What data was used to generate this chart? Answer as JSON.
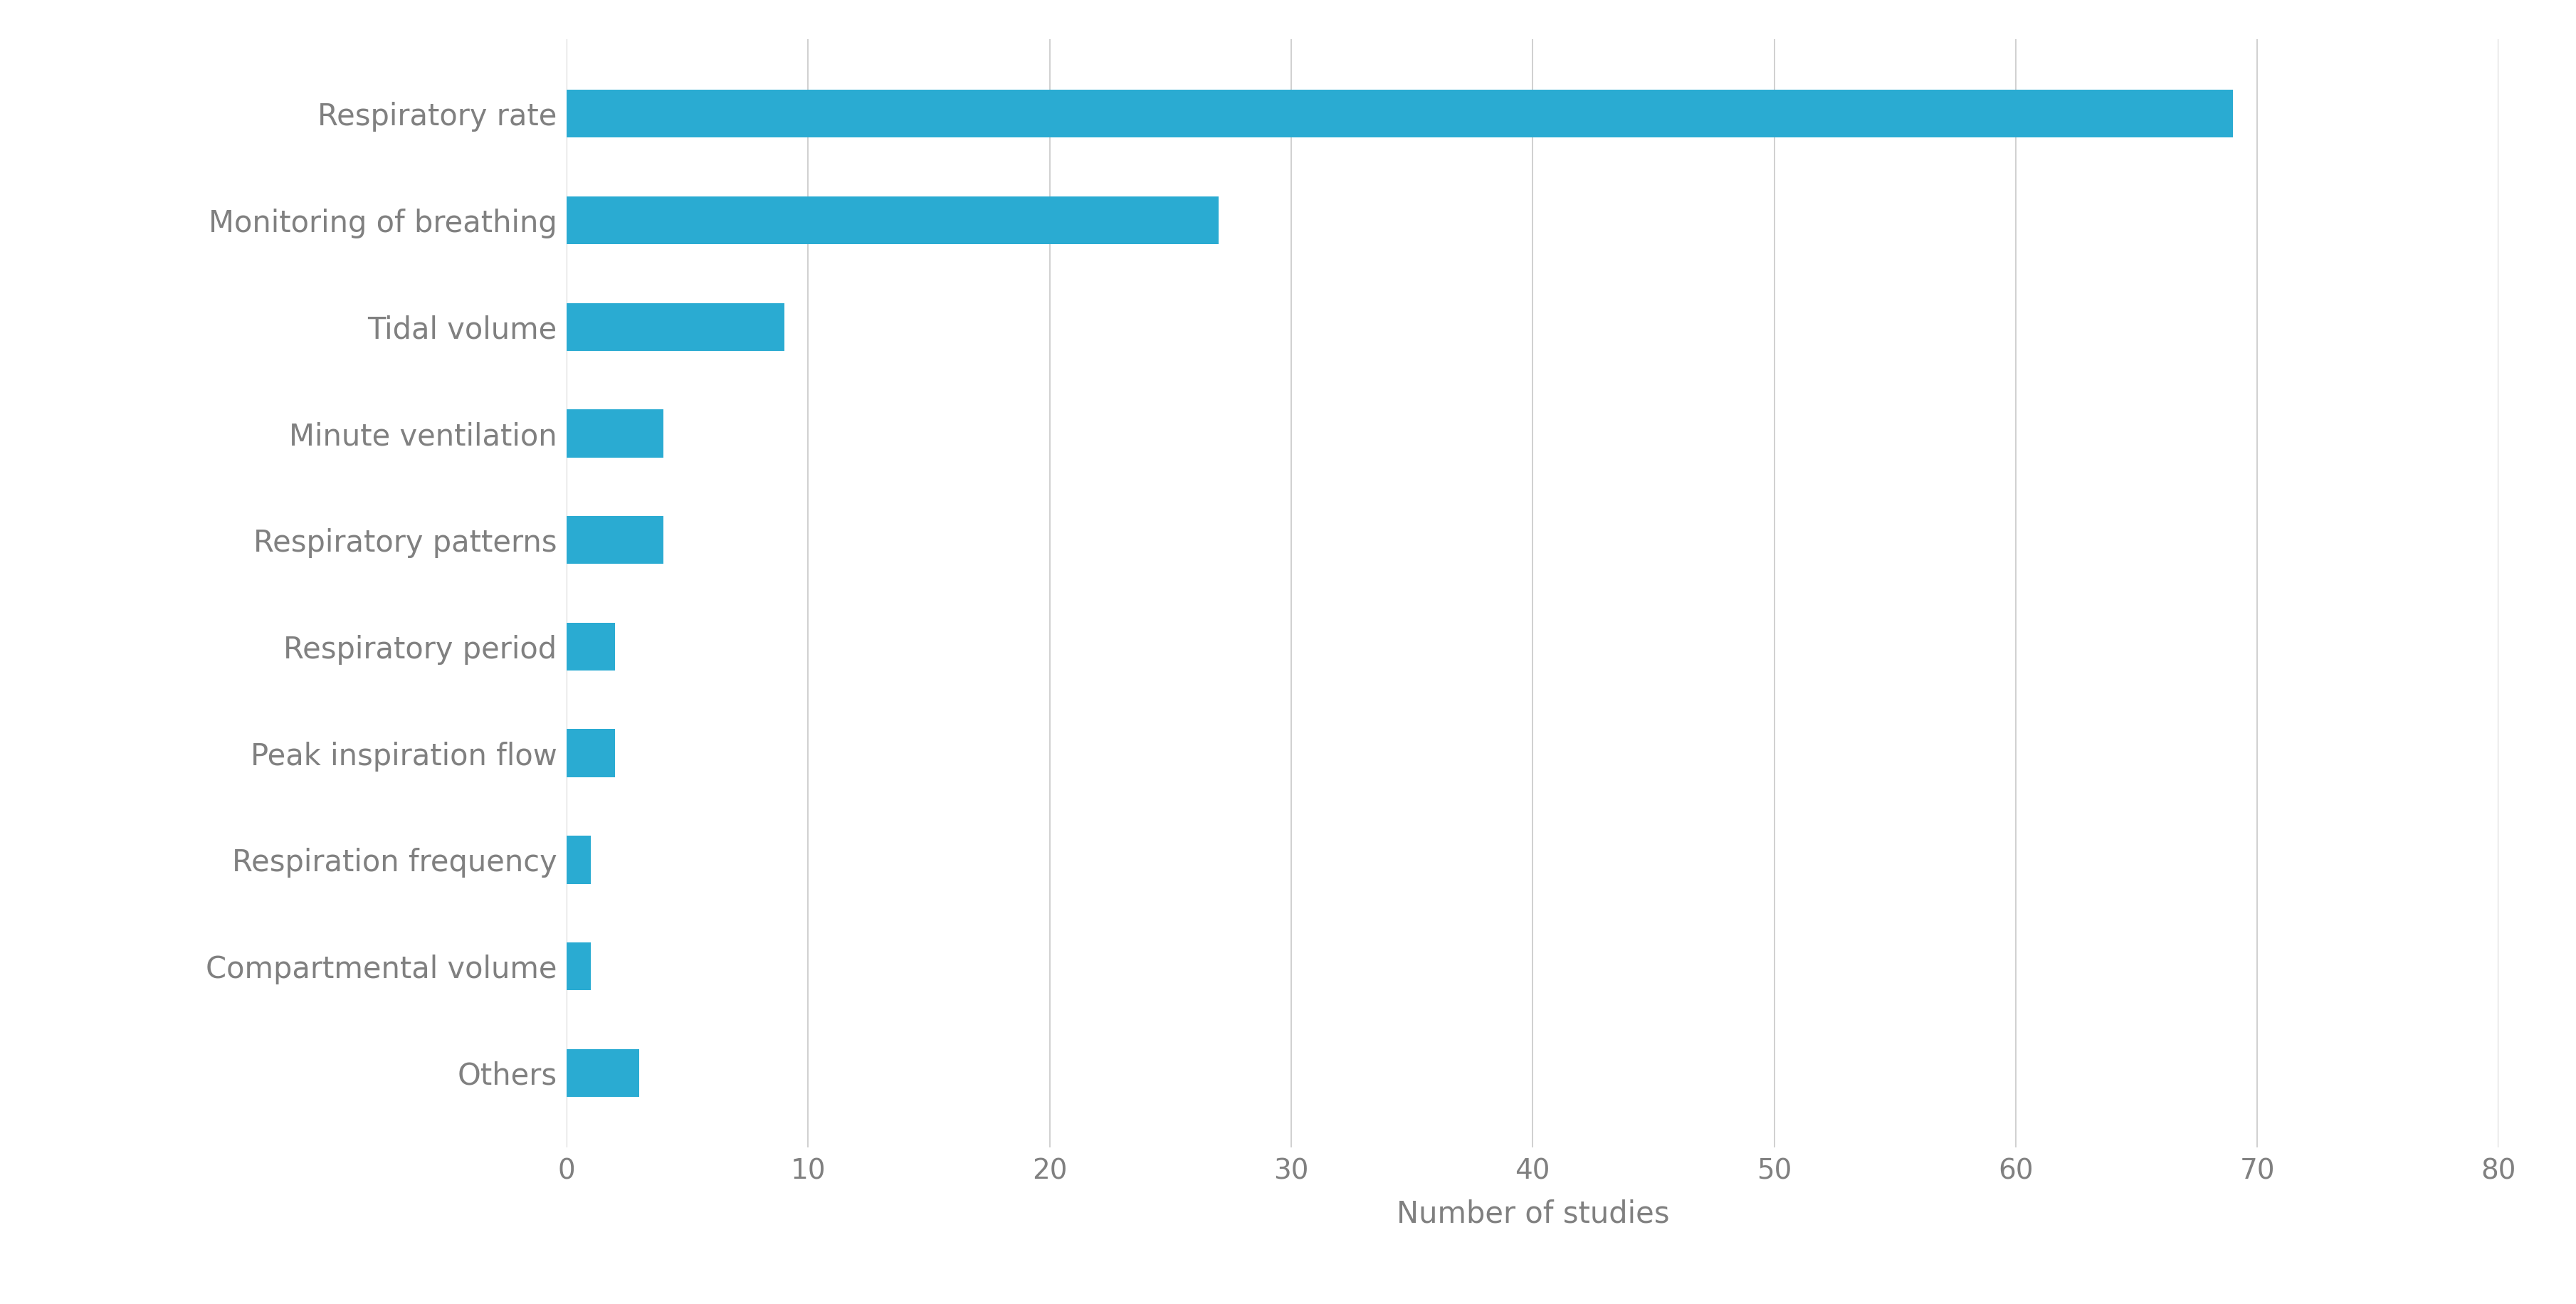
{
  "categories": [
    "Respiratory rate",
    "Monitoring of breathing",
    "Tidal volume",
    "Minute ventilation",
    "Respiratory patterns",
    "Respiratory period",
    "Peak inspiration flow",
    "Respiration frequency",
    "Compartmental volume",
    "Others"
  ],
  "values": [
    69,
    27,
    9,
    4,
    4,
    2,
    2,
    1,
    1,
    3
  ],
  "bar_color": "#2aabd2",
  "xlabel": "Number of studies",
  "xlim": [
    0,
    80
  ],
  "xticks": [
    0,
    10,
    20,
    30,
    40,
    50,
    60,
    70,
    80
  ],
  "background_color": "#ffffff",
  "grid_color": "#c8c8c8",
  "label_color": "#808080",
  "xlabel_fontsize": 30,
  "tick_fontsize": 28,
  "label_text_fontsize": 30,
  "bar_height": 0.45
}
